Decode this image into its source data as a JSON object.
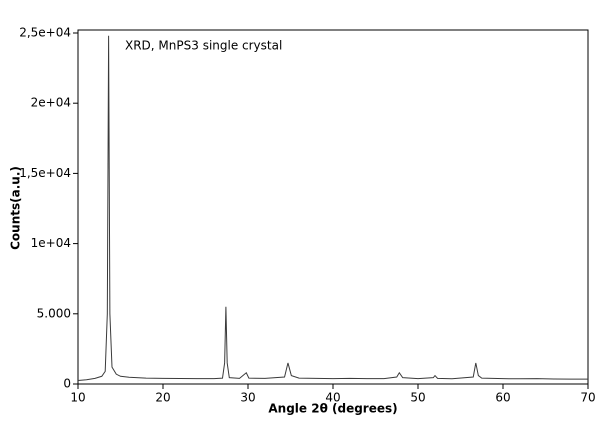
{
  "chart_data": {
    "type": "line",
    "annotation": "XRD, MnPS3 single crystal",
    "xlabel": "Angle 2θ (degrees)",
    "ylabel": "Counts(a.u.)",
    "xlim": [
      10,
      70
    ],
    "xticks": [
      10,
      20,
      30,
      40,
      50,
      60,
      70
    ],
    "ylim": [
      0,
      25000
    ],
    "yticks": [
      0,
      {
        "value": 5000,
        "label": "5.000"
      },
      {
        "value": 10000,
        "label": "1e+04"
      },
      {
        "value": 15000,
        "label": "1,5e+04"
      },
      {
        "value": 20000,
        "label": "2e+04"
      },
      {
        "value": 25000,
        "label": "2,5e+04"
      }
    ],
    "color": "#3a3a3a",
    "x": [
      10,
      11,
      12,
      12.8,
      13.2,
      13.45,
      13.6,
      13.75,
      14,
      14.5,
      15,
      16,
      18,
      20,
      22,
      24,
      26,
      27,
      27.25,
      27.4,
      27.55,
      27.8,
      29,
      29.8,
      30.1,
      32,
      34.3,
      34.7,
      35.1,
      36,
      38,
      40,
      42,
      44,
      46,
      47.5,
      47.8,
      48.2,
      50,
      51.8,
      52,
      52.3,
      54,
      56.5,
      56.8,
      57.1,
      57.5,
      60,
      62,
      64,
      66,
      68,
      70
    ],
    "values": [
      250,
      300,
      400,
      550,
      900,
      5000,
      24800,
      5000,
      1200,
      700,
      550,
      480,
      420,
      400,
      390,
      380,
      380,
      420,
      1500,
      5500,
      1500,
      450,
      400,
      800,
      420,
      400,
      500,
      1500,
      600,
      420,
      400,
      380,
      400,
      380,
      380,
      500,
      800,
      450,
      380,
      450,
      600,
      400,
      370,
      500,
      1500,
      600,
      420,
      380,
      370,
      380,
      360,
      350,
      350
    ]
  }
}
